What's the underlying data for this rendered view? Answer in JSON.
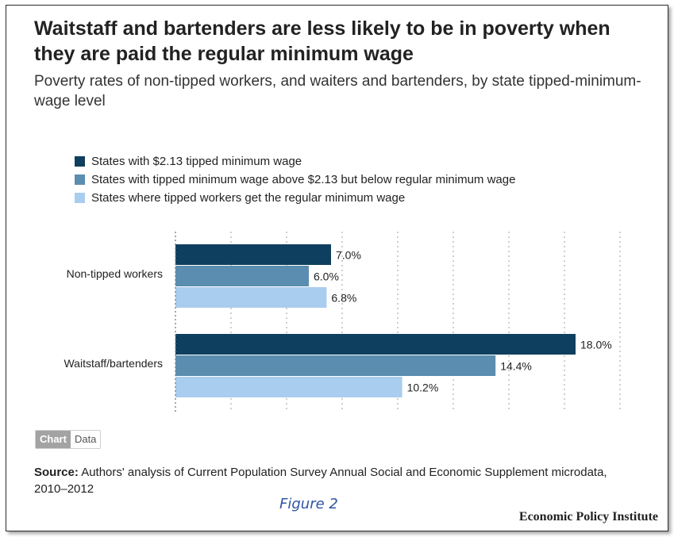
{
  "title": "Waitstaff and bartenders are less likely to be in poverty when they are paid the regular minimum wage",
  "subtitle": "Poverty rates of non-tipped workers, and waiters and bartenders, by state tipped-minimum-wage level",
  "toggle": {
    "chart_label": "Chart",
    "data_label": "Data"
  },
  "source": {
    "label": "Source:",
    "text": "Authors' analysis of Current Population Survey Annual Social and Economic Supplement microdata, 2010–2012"
  },
  "figure_caption": "Figure 2",
  "publisher": "Economic Policy Institute",
  "colors": {
    "series_1": "#0e3f5e",
    "series_2": "#5b8db0",
    "series_3": "#a9cdee"
  },
  "chart_data": {
    "type": "bar",
    "orientation": "horizontal",
    "categories": [
      "Non-tipped workers",
      "Waitstaff/bartenders"
    ],
    "series": [
      {
        "name": "States with $2.13 tipped minimum wage",
        "values": [
          7.0,
          18.0
        ],
        "labels": [
          "7.0%",
          "18.0%"
        ],
        "color": "#0e3f5e"
      },
      {
        "name": "States with tipped minimum wage above $2.13 but below regular minimum wage",
        "values": [
          6.0,
          14.4
        ],
        "labels": [
          "6.0%",
          "14.4%"
        ],
        "color": "#5b8db0"
      },
      {
        "name": "States where tipped workers get the regular minimum wage",
        "values": [
          6.8,
          10.2
        ],
        "labels": [
          "6.8%",
          "10.2%"
        ],
        "color": "#a9cdee"
      }
    ],
    "xlim": [
      0,
      20
    ],
    "grid": true,
    "legend": "top-left"
  }
}
